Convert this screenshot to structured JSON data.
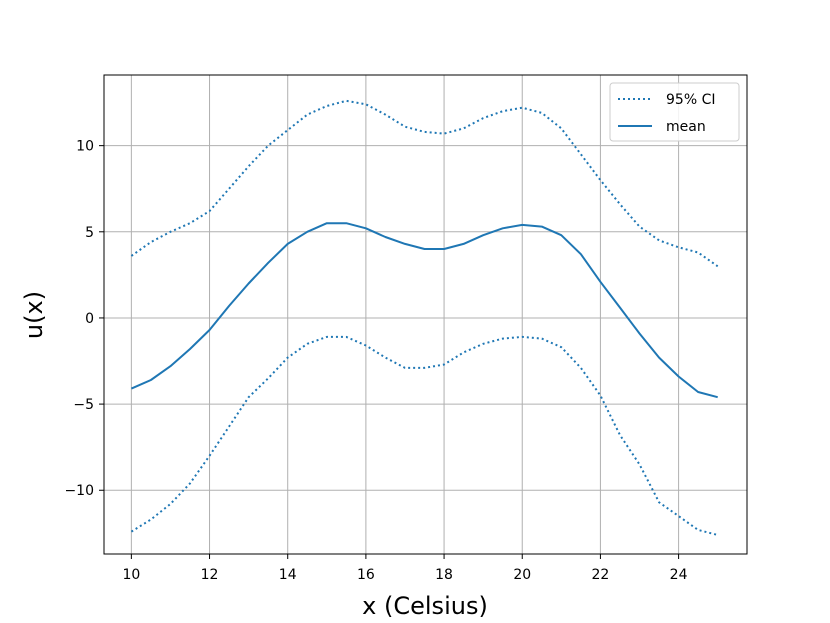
{
  "chart_data": {
    "type": "line",
    "title": "",
    "xlabel": "x (Celsius)",
    "ylabel": "u(x)",
    "xlim": [
      9.3,
      25.75
    ],
    "ylim": [
      -13.7,
      14.1
    ],
    "xticks": [
      10,
      12,
      14,
      16,
      18,
      20,
      22,
      24
    ],
    "yticks": [
      -10,
      -5,
      0,
      5,
      10
    ],
    "xtick_labels": [
      "10",
      "12",
      "14",
      "16",
      "18",
      "20",
      "22",
      "24"
    ],
    "ytick_labels": [
      "−10",
      "−5",
      "0",
      "5",
      "10"
    ],
    "grid": true,
    "legend_position": "top-right",
    "colors": {
      "series": "#1f77b4",
      "grid": "#b0b0b0",
      "axis": "#000000"
    },
    "x": [
      10,
      10.5,
      11,
      11.5,
      12,
      12.5,
      13,
      13.5,
      14,
      14.5,
      15,
      15.5,
      16,
      16.5,
      17,
      17.5,
      18,
      18.5,
      19,
      19.5,
      20,
      20.5,
      21,
      21.5,
      22,
      22.5,
      23,
      23.5,
      24,
      24.5,
      25
    ],
    "series": [
      {
        "name": "95% CI",
        "style": "dotted",
        "values": [
          3.6,
          4.4,
          5.0,
          5.5,
          6.2,
          7.5,
          8.8,
          10.0,
          10.9,
          11.8,
          12.3,
          12.6,
          12.4,
          11.8,
          11.1,
          10.8,
          10.7,
          11.0,
          11.6,
          12.0,
          12.2,
          11.9,
          11.0,
          9.5,
          8.0,
          6.6,
          5.3,
          4.5,
          4.1,
          3.8,
          3.0
        ]
      },
      {
        "name": "mean",
        "style": "solid",
        "values": [
          -4.1,
          -3.6,
          -2.8,
          -1.8,
          -0.7,
          0.7,
          2.0,
          3.2,
          4.3,
          5.0,
          5.5,
          5.5,
          5.2,
          4.7,
          4.3,
          4.0,
          4.0,
          4.3,
          4.8,
          5.2,
          5.4,
          5.3,
          4.8,
          3.7,
          2.1,
          0.6,
          -0.9,
          -2.3,
          -3.4,
          -4.3,
          -4.6
        ]
      },
      {
        "name": "",
        "style": "dotted",
        "values": [
          -12.4,
          -11.7,
          -10.8,
          -9.6,
          -8.0,
          -6.3,
          -4.6,
          -3.5,
          -2.3,
          -1.5,
          -1.1,
          -1.1,
          -1.6,
          -2.3,
          -2.9,
          -2.9,
          -2.7,
          -2.0,
          -1.5,
          -1.2,
          -1.1,
          -1.2,
          -1.7,
          -2.9,
          -4.5,
          -6.8,
          -8.5,
          -10.7,
          -11.5,
          -12.3,
          -12.6
        ]
      }
    ]
  }
}
